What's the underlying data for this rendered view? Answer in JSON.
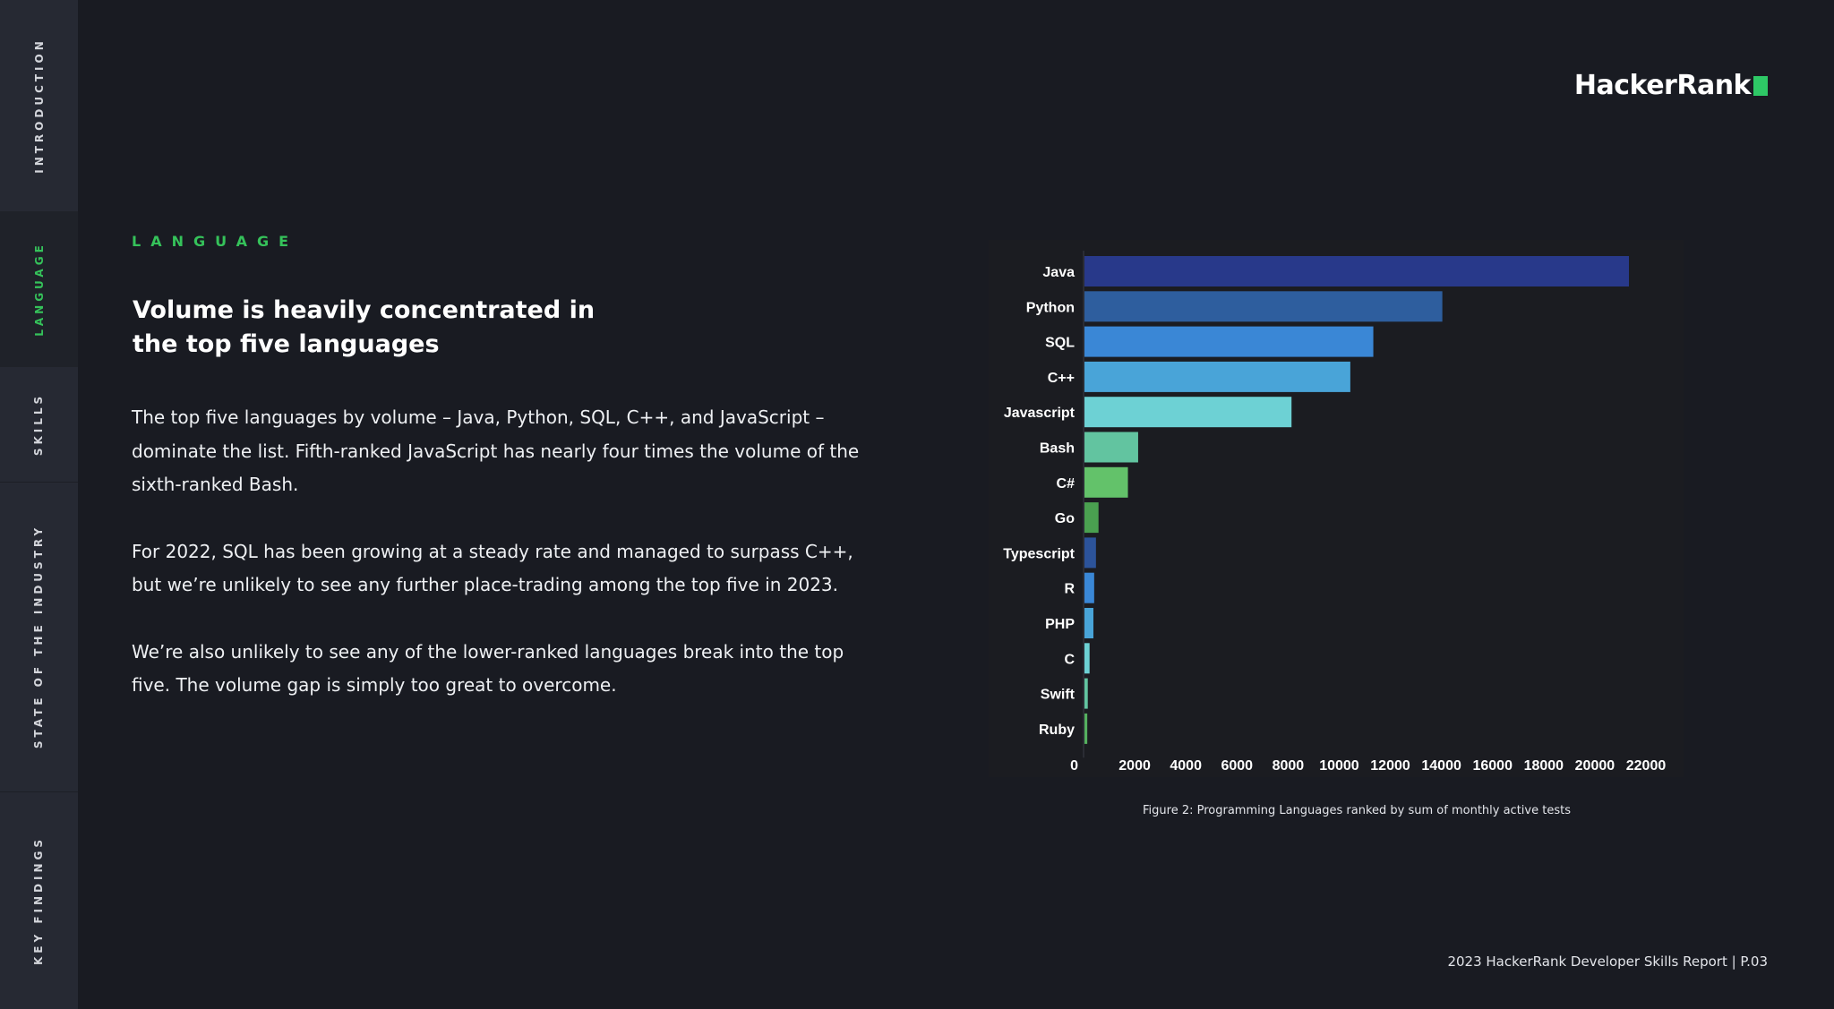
{
  "nav": {
    "items": [
      {
        "label": "INTRODUCTION"
      },
      {
        "label": "LANGUAGE"
      },
      {
        "label": "SKILLS"
      },
      {
        "label": "STATE OF THE INDUSTRY"
      },
      {
        "label": "KEY FINDINGS"
      }
    ],
    "active": "LANGUAGE"
  },
  "logo": {
    "text": "HackerRank"
  },
  "section_label": "LANGUAGE",
  "headline": "Volume is heavily concentrated in the top five languages",
  "paragraphs": [
    "The top five languages by volume – Java, Python, SQL, C++, and JavaScript – dominate the list. Fifth-ranked JavaScript has nearly four times the volume of the sixth-ranked Bash.",
    "For 2022, SQL has been growing at a steady rate and managed to surpass C++, but we’re unlikely to see any further place-trading among the top five in 2023.",
    "We’re also unlikely to see any of the lower-ranked languages break into the top five. The volume gap is simply too great to overcome."
  ],
  "chart_data": {
    "type": "bar",
    "orientation": "horizontal",
    "categories": [
      "Java",
      "Python",
      "SQL",
      "C++",
      "Javascript",
      "Bash",
      "C#",
      "Go",
      "Typescript",
      "R",
      "PHP",
      "C",
      "Swift",
      "Ruby"
    ],
    "values": [
      21300,
      14000,
      11300,
      10400,
      8100,
      2100,
      1700,
      550,
      450,
      380,
      350,
      200,
      130,
      110
    ],
    "colors": [
      "#28398a",
      "#2e5e9e",
      "#3a87d6",
      "#49a4d8",
      "#6dd1d4",
      "#62c4a0",
      "#63c26a",
      "#4aa050",
      "#2c539a",
      "#3a87d6",
      "#49a4d8",
      "#6dd1d4",
      "#62c4a0",
      "#55b05f"
    ],
    "xticks": [
      0,
      2000,
      4000,
      6000,
      8000,
      10000,
      12000,
      14000,
      16000,
      18000,
      20000,
      22000
    ],
    "xlim": [
      0,
      22000
    ],
    "grid": false,
    "caption": "Figure 2: Programming Languages ranked by sum of monthly active tests"
  },
  "footer": "2023 HackerRank Developer Skills Report | P.03"
}
